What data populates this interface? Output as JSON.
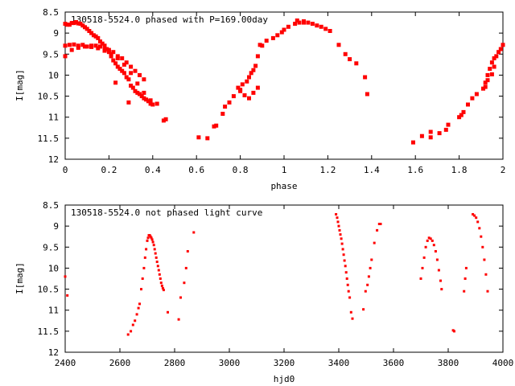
{
  "chart_data": [
    {
      "type": "scatter",
      "title": "130518-5524.0 phased with P=169.00day",
      "xlabel": "phase",
      "ylabel": "I[mag]",
      "xlim": [
        0,
        2
      ],
      "ylim": [
        8.5,
        12
      ],
      "y_inverted": true,
      "grid": false,
      "xticks": [
        "0",
        "0.2",
        "0.4",
        "0.6",
        "0.8",
        "1",
        "1.2",
        "1.4",
        "1.6",
        "1.8",
        "2"
      ],
      "yticks": [
        "8.5",
        "9",
        "9.5",
        "10",
        "10.5",
        "11",
        "11.5",
        "12"
      ],
      "marker": "filled-square",
      "color": "#ff0000",
      "series": [
        {
          "x": [
            0.0,
            0.01,
            0.02,
            0.03,
            0.04,
            0.05,
            0.06,
            0.07,
            0.08,
            0.09,
            0.1,
            0.11,
            0.12,
            0.13,
            0.14,
            0.15,
            0.16,
            0.17,
            0.18,
            0.19,
            0.2,
            0.21,
            0.22,
            0.23,
            0.24,
            0.25,
            0.26,
            0.27,
            0.28,
            0.29,
            0.3,
            0.31,
            0.32,
            0.33,
            0.34,
            0.35,
            0.36,
            0.37,
            0.38,
            0.39,
            0.4,
            0.42,
            0.45,
            0.46,
            0.0,
            0.02,
            0.04,
            0.06,
            0.08,
            0.1,
            0.12,
            0.14,
            0.16,
            0.18,
            0.2,
            0.22,
            0.24,
            0.26,
            0.28,
            0.3,
            0.32,
            0.34,
            0.36,
            0.0,
            0.03,
            0.06,
            0.09,
            0.12,
            0.15,
            0.18,
            0.21,
            0.24,
            0.27,
            0.3,
            0.33,
            0.36,
            0.39,
            0.23,
            0.29,
            0.61,
            0.65,
            0.68,
            0.69,
            0.72,
            0.73,
            0.75,
            0.77,
            0.79,
            0.8,
            0.81,
            0.83,
            0.84,
            0.85,
            0.86,
            0.87,
            0.88,
            0.89,
            0.9,
            0.92,
            0.95,
            0.97,
            0.99,
            1.0,
            1.02,
            1.05,
            1.07,
            1.09,
            1.11,
            1.13,
            1.15,
            1.17,
            1.19,
            1.21,
            0.8,
            0.82,
            0.84,
            0.86,
            0.88,
            1.06,
            1.09,
            1.25,
            1.28,
            1.3,
            1.33,
            1.37,
            1.38,
            1.59,
            1.63,
            1.67,
            1.67,
            1.71,
            1.74,
            1.75,
            1.8,
            1.81,
            1.82,
            1.84,
            1.86,
            1.88,
            1.91,
            1.92,
            1.93,
            1.94,
            1.95,
            1.96,
            1.97,
            1.98,
            1.99,
            2.0,
            1.92,
            1.93,
            1.95,
            1.96
          ],
          "y": [
            8.78,
            8.8,
            8.8,
            8.76,
            8.76,
            8.74,
            8.77,
            8.78,
            8.82,
            8.86,
            8.9,
            8.95,
            9.0,
            9.05,
            9.08,
            9.12,
            9.2,
            9.25,
            9.3,
            9.38,
            9.45,
            9.55,
            9.65,
            9.72,
            9.8,
            9.85,
            9.9,
            9.95,
            10.05,
            10.1,
            10.25,
            10.3,
            10.38,
            10.42,
            10.45,
            10.5,
            10.55,
            10.58,
            10.62,
            10.68,
            10.7,
            10.68,
            11.08,
            11.05,
            9.3,
            9.28,
            9.27,
            9.3,
            9.28,
            9.32,
            9.3,
            9.3,
            9.32,
            9.35,
            9.4,
            9.45,
            9.55,
            9.6,
            9.7,
            9.8,
            9.9,
            10.0,
            10.1,
            9.55,
            9.4,
            9.35,
            9.32,
            9.33,
            9.36,
            9.42,
            9.5,
            9.6,
            9.75,
            9.95,
            10.2,
            10.42,
            10.6,
            10.18,
            10.65,
            11.48,
            11.5,
            11.22,
            11.2,
            10.92,
            10.75,
            10.65,
            10.5,
            10.3,
            10.35,
            10.22,
            10.15,
            10.05,
            9.95,
            9.88,
            9.78,
            9.55,
            9.28,
            9.3,
            9.18,
            9.12,
            9.05,
            8.98,
            8.92,
            8.85,
            8.78,
            8.75,
            8.75,
            8.75,
            8.78,
            8.82,
            8.85,
            8.9,
            8.95,
            10.38,
            10.48,
            10.55,
            10.42,
            10.3,
            8.7,
            8.72,
            9.28,
            9.5,
            9.62,
            9.72,
            10.05,
            10.45,
            11.6,
            11.45,
            11.48,
            11.35,
            11.38,
            11.3,
            11.18,
            11.0,
            10.95,
            10.88,
            10.7,
            10.55,
            10.45,
            10.32,
            10.18,
            10.0,
            9.85,
            9.7,
            9.6,
            9.55,
            9.45,
            9.38,
            9.28,
            10.28,
            10.12,
            9.98,
            9.8
          ]
        }
      ]
    },
    {
      "type": "scatter",
      "title": "130518-5524.0 not phased light curve",
      "xlabel": "hjd0",
      "ylabel": "I[mag]",
      "xlim": [
        2400,
        4000
      ],
      "ylim": [
        8.5,
        12
      ],
      "y_inverted": true,
      "grid": false,
      "xticks": [
        "2400",
        "2600",
        "2800",
        "3000",
        "3200",
        "3400",
        "3600",
        "3800",
        "4000"
      ],
      "yticks": [
        "8.5",
        "9",
        "9.5",
        "10",
        "10.5",
        "11",
        "11.5",
        "12"
      ],
      "marker": "filled-square",
      "color": "#ff0000",
      "series": [
        {
          "x": [
            2400,
            2408,
            2630,
            2640,
            2648,
            2655,
            2662,
            2668,
            2672,
            2678,
            2683,
            2688,
            2692,
            2696,
            2700,
            2703,
            2706,
            2709,
            2712,
            2715,
            2718,
            2721,
            2724,
            2727,
            2730,
            2733,
            2736,
            2739,
            2742,
            2745,
            2748,
            2751,
            2754,
            2757,
            2760,
            2775,
            2815,
            2822,
            2835,
            2842,
            2848,
            2870,
            3390,
            3394,
            3397,
            3400,
            3403,
            3406,
            3409,
            3412,
            3415,
            3418,
            3421,
            3424,
            3427,
            3430,
            3433,
            3436,
            3440,
            3445,
            3450,
            3490,
            3498,
            3505,
            3510,
            3515,
            3520,
            3530,
            3540,
            3548,
            3553,
            3700,
            3706,
            3712,
            3718,
            3724,
            3730,
            3736,
            3742,
            3748,
            3754,
            3760,
            3766,
            3772,
            3776,
            3818,
            3822,
            3858,
            3862,
            3866,
            3890,
            3896,
            3902,
            3908,
            3914,
            3920,
            3926,
            3932,
            3938,
            3944
          ],
          "y": [
            10.2,
            10.65,
            11.58,
            11.5,
            11.35,
            11.25,
            11.1,
            10.95,
            10.85,
            10.5,
            10.25,
            10.0,
            9.75,
            9.55,
            9.35,
            9.28,
            9.22,
            9.22,
            9.25,
            9.28,
            9.32,
            9.38,
            9.45,
            9.55,
            9.65,
            9.75,
            9.85,
            9.95,
            10.05,
            10.15,
            10.25,
            10.35,
            10.42,
            10.48,
            10.52,
            11.05,
            11.22,
            10.7,
            10.35,
            10.0,
            9.6,
            9.15,
            8.72,
            8.8,
            8.9,
            9.0,
            9.1,
            9.2,
            9.3,
            9.42,
            9.55,
            9.68,
            9.82,
            9.95,
            10.1,
            10.25,
            10.4,
            10.55,
            10.7,
            11.05,
            11.2,
            10.98,
            10.55,
            10.4,
            10.2,
            10.0,
            9.8,
            9.4,
            9.1,
            8.95,
            8.95,
            10.25,
            10.0,
            9.75,
            9.5,
            9.35,
            9.28,
            9.3,
            9.35,
            9.45,
            9.6,
            9.8,
            10.05,
            10.3,
            10.5,
            11.48,
            11.5,
            10.55,
            10.25,
            10.0,
            8.72,
            8.75,
            8.8,
            8.9,
            9.05,
            9.25,
            9.5,
            9.8,
            10.15,
            10.55
          ]
        }
      ]
    }
  ]
}
